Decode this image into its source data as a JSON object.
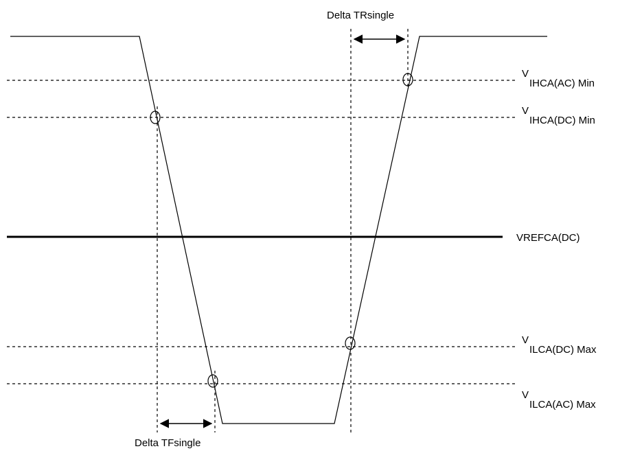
{
  "delta_tr_label": "Delta TRsingle",
  "delta_tf_label": "Delta TFsingle",
  "vref_label": "VREFCA(DC)",
  "levels": [
    {
      "name": "vihca-ac-min",
      "v": "V",
      "sub": "IHCA(AC) Min"
    },
    {
      "name": "vihca-dc-min",
      "v": "V",
      "sub": "IHCA(DC) Min"
    },
    {
      "name": "vilca-dc-max",
      "v": "V",
      "sub": "ILCA(DC) Max"
    },
    {
      "name": "vilca-ac-max",
      "v": "V",
      "sub": "ILCA(AC) Max"
    }
  ]
}
